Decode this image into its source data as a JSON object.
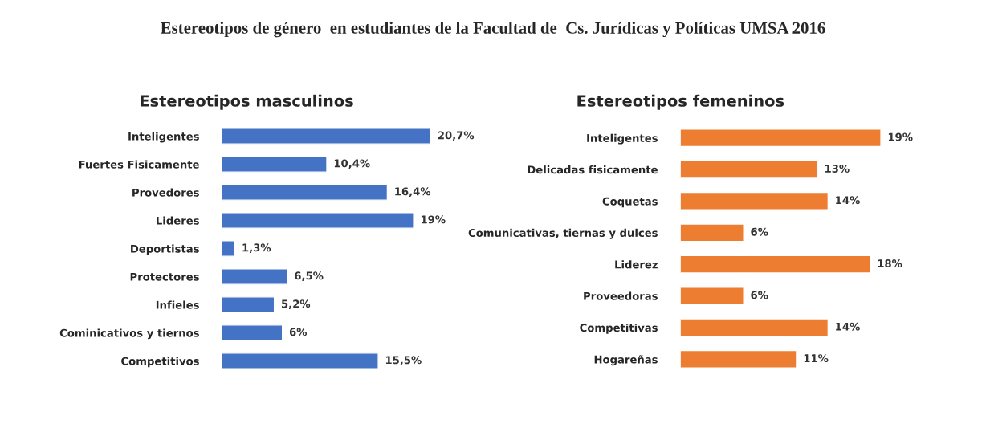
{
  "chart_data": [
    {
      "type": "bar",
      "orientation": "horizontal",
      "title": "Estereotipos de género  en estudiantes de la Facultad de  Cs. Jurídicas y Políticas UMSA 2016",
      "subtitle": "Estereotipos masculinos",
      "categories": [
        "Inteligentes",
        "Fuertes Fisicamente",
        "Provedores",
        "Lideres",
        "Deportistas",
        "Protectores",
        "Infieles",
        "Cominicativos y tiernos",
        "Competitivos"
      ],
      "values": [
        20.7,
        10.4,
        16.4,
        19,
        1.3,
        6.5,
        5.2,
        6,
        15.5
      ],
      "value_labels": [
        "20,7%",
        "10,4%",
        "16,4%",
        "19%",
        "1,3%",
        "6,5%",
        "5,2%",
        "6%",
        "15,5%"
      ],
      "color": "#4472c4",
      "grid": false,
      "legend": false
    },
    {
      "type": "bar",
      "orientation": "horizontal",
      "title": "Estereotipos femeninos",
      "categories": [
        "Inteligentes",
        "Delicadas fisicamente",
        "Coquetas",
        "Comunicativas, tiernas y dulces",
        "Liderez",
        "Proveedoras",
        "Competitivas",
        "Hogareñas"
      ],
      "values": [
        19,
        13,
        14,
        6,
        18,
        6,
        14,
        11
      ],
      "value_labels": [
        "19%",
        "13%",
        "14%",
        "6%",
        "18%",
        "6%",
        "14%",
        "11%"
      ],
      "color": "#ed7d31",
      "grid": false,
      "legend": false
    }
  ]
}
